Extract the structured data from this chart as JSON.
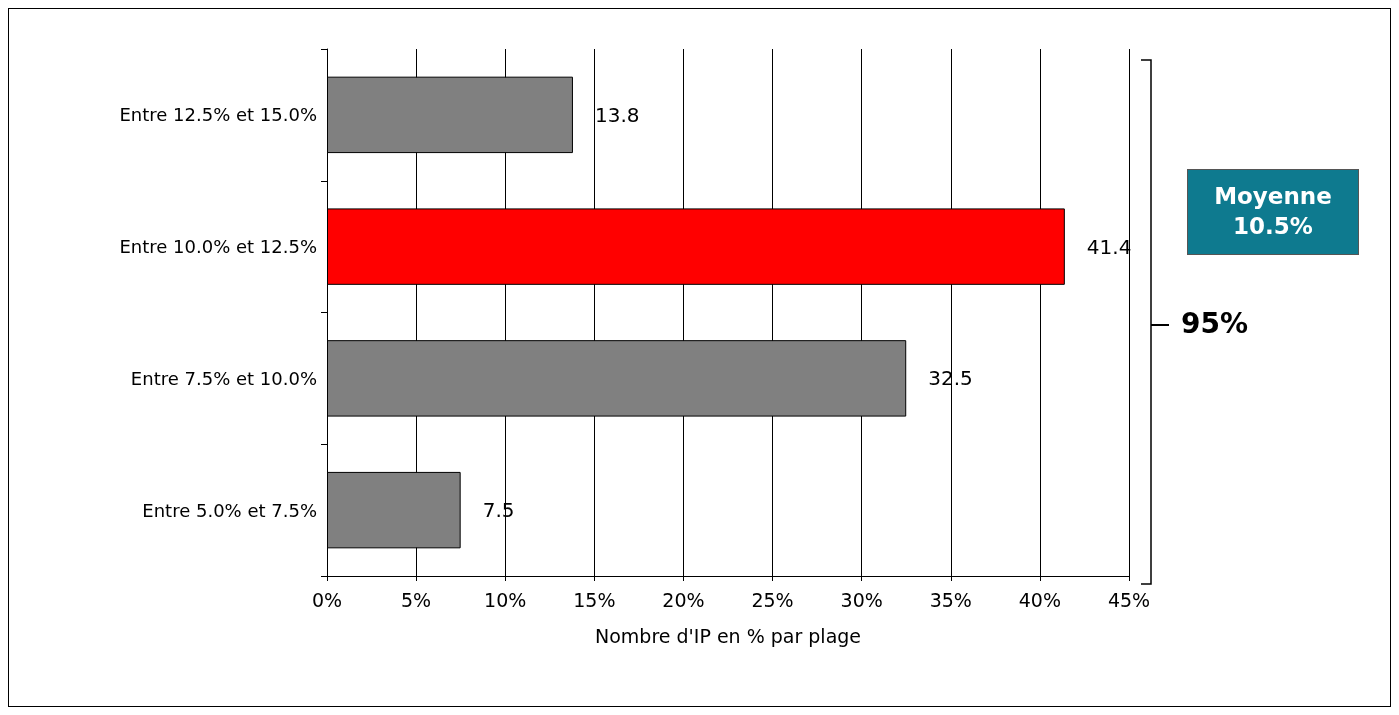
{
  "chart_data": {
    "type": "bar",
    "orientation": "horizontal",
    "categories": [
      "Entre 12.5% et 15.0%",
      "Entre 10.0% et 12.5%",
      "Entre 7.5% et 10.0%",
      "Entre 5.0% et 7.5%"
    ],
    "values": [
      13.8,
      41.4,
      32.5,
      7.5
    ],
    "colors": [
      "#808080",
      "#ff0000",
      "#808080",
      "#808080"
    ],
    "xlim": [
      0,
      45
    ],
    "xticks": [
      {
        "value": 0,
        "label": "0%"
      },
      {
        "value": 5,
        "label": "5%"
      },
      {
        "value": 10,
        "label": "10%"
      },
      {
        "value": 15,
        "label": "15%"
      },
      {
        "value": 20,
        "label": "20%"
      },
      {
        "value": 25,
        "label": "25%"
      },
      {
        "value": 30,
        "label": "30%"
      },
      {
        "value": 35,
        "label": "35%"
      },
      {
        "value": 40,
        "label": "40%"
      },
      {
        "value": 45,
        "label": "45%"
      }
    ],
    "xlabel": "Nombre d'IP en % par plage",
    "grid": "x",
    "data_labels": true,
    "annotations": [
      "Moyenne 10.5%",
      "95%"
    ]
  }
}
